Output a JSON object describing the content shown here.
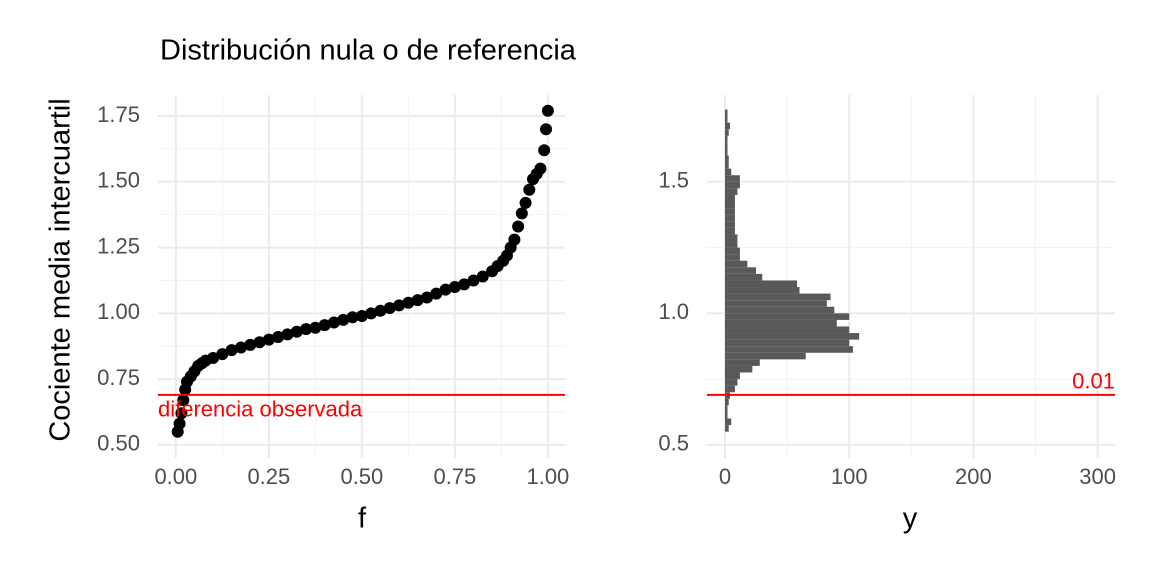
{
  "chart_data": [
    {
      "type": "scatter",
      "title": "Distribución nula o de referencia",
      "x_label": "f",
      "y_label": "Cociente media intercuartil",
      "x": [
        0.005,
        0.01,
        0.015,
        0.02,
        0.025,
        0.03,
        0.04,
        0.05,
        0.06,
        0.07,
        0.08,
        0.1,
        0.125,
        0.15,
        0.175,
        0.2,
        0.225,
        0.25,
        0.275,
        0.3,
        0.325,
        0.35,
        0.375,
        0.4,
        0.425,
        0.45,
        0.475,
        0.5,
        0.525,
        0.55,
        0.575,
        0.6,
        0.625,
        0.65,
        0.675,
        0.7,
        0.725,
        0.75,
        0.775,
        0.8,
        0.825,
        0.85,
        0.865,
        0.88,
        0.89,
        0.9,
        0.91,
        0.92,
        0.93,
        0.94,
        0.95,
        0.96,
        0.97,
        0.98,
        0.99,
        0.995,
        1.0
      ],
      "values": [
        0.55,
        0.58,
        0.62,
        0.67,
        0.71,
        0.74,
        0.76,
        0.78,
        0.8,
        0.81,
        0.82,
        0.83,
        0.845,
        0.86,
        0.87,
        0.88,
        0.89,
        0.9,
        0.91,
        0.92,
        0.93,
        0.94,
        0.945,
        0.955,
        0.965,
        0.975,
        0.985,
        0.99,
        1.0,
        1.01,
        1.02,
        1.03,
        1.04,
        1.05,
        1.06,
        1.075,
        1.09,
        1.1,
        1.11,
        1.125,
        1.14,
        1.16,
        1.18,
        1.2,
        1.22,
        1.25,
        1.28,
        1.33,
        1.38,
        1.42,
        1.47,
        1.51,
        1.53,
        1.55,
        1.62,
        1.7,
        1.77
      ],
      "color": "#000000",
      "xlim": [
        -0.048,
        1.046
      ],
      "ylim": [
        0.45,
        1.83
      ],
      "xticks": [
        {
          "value": 0,
          "label": "0.00"
        },
        0.25,
        {
          "value": 0.5,
          "label": "0.50"
        },
        0.75,
        {
          "value": 1,
          "label": "1.00"
        }
      ],
      "yticks": [
        {
          "value": 0.5,
          "label": "0.50"
        },
        0.75,
        {
          "value": 1,
          "label": "1.00"
        },
        1.25,
        {
          "value": 1.5,
          "label": "1.50"
        },
        1.75
      ],
      "grid": true,
      "hline": {
        "value": 0.69,
        "label": "diferencia observada",
        "color": "#ff0000"
      }
    },
    {
      "type": "histogram",
      "x_label": "y",
      "bins": [
        0.55,
        0.575,
        0.6,
        0.625,
        0.65,
        0.675,
        0.7,
        0.725,
        0.75,
        0.775,
        0.8,
        0.825,
        0.85,
        0.875,
        0.9,
        0.925,
        0.95,
        0.975,
        1.0,
        1.025,
        1.05,
        1.075,
        1.1,
        1.125,
        1.15,
        1.175,
        1.2,
        1.225,
        1.25,
        1.275,
        1.3,
        1.325,
        1.35,
        1.375,
        1.4,
        1.425,
        1.45,
        1.475,
        1.5,
        1.525,
        1.55,
        1.575,
        1.6,
        1.625,
        1.65,
        1.675,
        1.7,
        1.725,
        1.75,
        1.775
      ],
      "values": [
        3,
        5,
        2,
        2,
        3,
        4,
        8,
        10,
        12,
        22,
        28,
        65,
        103,
        100,
        108,
        100,
        90,
        100,
        88,
        82,
        85,
        60,
        58,
        30,
        25,
        18,
        12,
        12,
        10,
        10,
        8,
        8,
        8,
        8,
        8,
        8,
        10,
        12,
        12,
        5,
        3,
        3,
        2,
        2,
        2,
        3,
        4,
        2,
        2
      ],
      "color": "#595959",
      "xlim": [
        -14.5,
        314
      ],
      "ylim": [
        0.45,
        1.83
      ],
      "xticks": [
        0,
        100,
        200,
        300
      ],
      "yticks": [
        0.5,
        {
          "value": 1,
          "label": "1.0"
        },
        1.5
      ],
      "grid": true,
      "hline": {
        "value": 0.69,
        "label": "0.01",
        "color": "#ff0000"
      }
    }
  ]
}
